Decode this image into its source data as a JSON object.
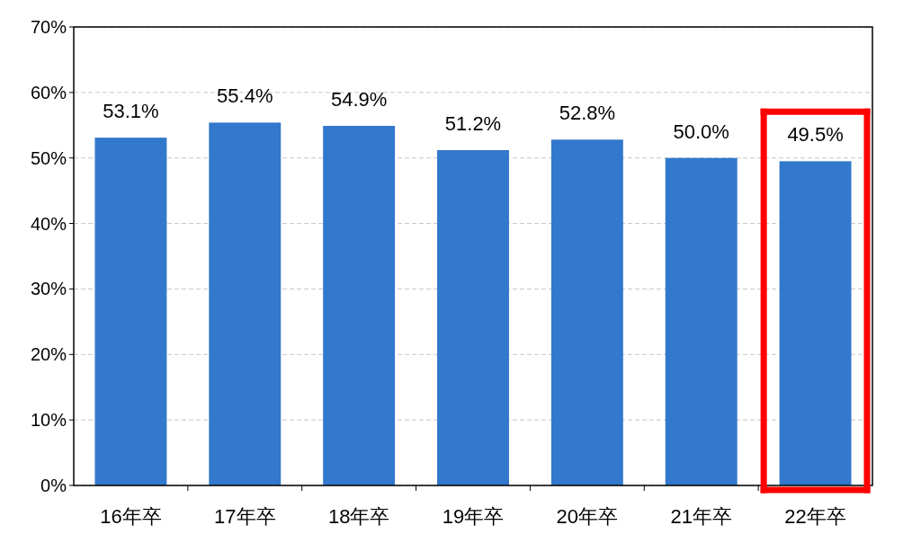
{
  "chart_data": {
    "type": "bar",
    "categories": [
      "16年卒",
      "17年卒",
      "18年卒",
      "19年卒",
      "20年卒",
      "21年卒",
      "22年卒"
    ],
    "values": [
      53.1,
      55.4,
      54.9,
      51.2,
      52.8,
      50.0,
      49.5
    ],
    "value_labels": [
      "53.1%",
      "55.4%",
      "54.9%",
      "51.2%",
      "52.8%",
      "50.0%",
      "49.5%"
    ],
    "color": "#3278cc",
    "ylim": [
      0,
      70
    ],
    "yticks": [
      {
        "value": 0,
        "label": "0%"
      },
      {
        "value": 10,
        "label": "10%"
      },
      {
        "value": 20,
        "label": "20%"
      },
      {
        "value": 30,
        "label": "30%"
      },
      {
        "value": 40,
        "label": "40%"
      },
      {
        "value": 50,
        "label": "50%"
      },
      {
        "value": 60,
        "label": "60%"
      },
      {
        "value": 70,
        "label": "70%"
      }
    ],
    "grid": "y"
  }
}
